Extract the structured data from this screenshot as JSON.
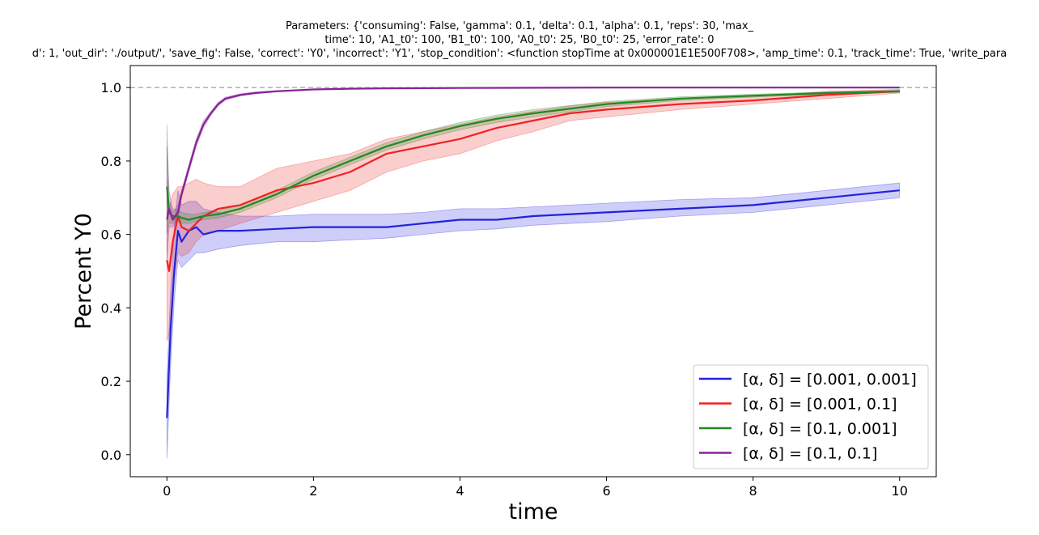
{
  "chart_data": {
    "type": "line",
    "title_lines": [
      "Parameters: {'consuming': False, 'gamma': 0.1, 'delta': 0.1, 'alpha': 0.1, 'reps': 30, 'max_",
      "time': 10, 'A1_t0': 100, 'B1_t0': 100, 'A0_t0': 25, 'B0_t0': 25, 'error_rate': 0",
      "d': 1, 'out_dir': './output/', 'save_fig': False, 'correct': 'Y0', 'incorrect': 'Y1', 'stop_condition': <function stopTime at 0x000001E1E500F708>, 'amp_time': 0.1, 'track_time': True, 'write_para"
    ],
    "xlabel": "time",
    "ylabel": "Percent Y0",
    "xlim": [
      -0.5,
      10.5
    ],
    "ylim": [
      -0.06,
      1.06
    ],
    "x_ticks": [
      "0",
      "2",
      "4",
      "6",
      "8",
      "10"
    ],
    "y_ticks": [
      "0.0",
      "0.2",
      "0.4",
      "0.6",
      "0.8",
      "1.0"
    ],
    "reference_line": {
      "y": 1.0,
      "style": "dashed",
      "color": "#b0b0b0"
    },
    "legend_position": "lower-right",
    "grid": false,
    "series": [
      {
        "name": "[α, δ] = [0.001, 0.001]",
        "color": "#2222dd",
        "x": [
          0,
          0.05,
          0.1,
          0.15,
          0.2,
          0.3,
          0.4,
          0.5,
          0.7,
          1.0,
          1.5,
          2.0,
          2.5,
          3.0,
          3.5,
          4.0,
          4.5,
          5.0,
          6.0,
          7.0,
          8.0,
          9.0,
          10.0
        ],
        "y": [
          0.1,
          0.34,
          0.5,
          0.61,
          0.58,
          0.61,
          0.62,
          0.6,
          0.61,
          0.61,
          0.615,
          0.62,
          0.62,
          0.62,
          0.63,
          0.64,
          0.64,
          0.65,
          0.66,
          0.67,
          0.68,
          0.7,
          0.72
        ],
        "lower": [
          -0.01,
          0.24,
          0.42,
          0.53,
          0.51,
          0.53,
          0.55,
          0.55,
          0.56,
          0.57,
          0.58,
          0.58,
          0.585,
          0.59,
          0.6,
          0.61,
          0.615,
          0.625,
          0.635,
          0.65,
          0.66,
          0.68,
          0.7
        ],
        "upper": [
          0.21,
          0.44,
          0.62,
          0.72,
          0.68,
          0.69,
          0.69,
          0.67,
          0.66,
          0.65,
          0.65,
          0.655,
          0.655,
          0.655,
          0.66,
          0.67,
          0.67,
          0.675,
          0.685,
          0.695,
          0.7,
          0.72,
          0.74
        ]
      },
      {
        "name": "[α, δ] = [0.001, 0.1]",
        "color": "#ee2222",
        "x": [
          0,
          0.03,
          0.08,
          0.15,
          0.2,
          0.3,
          0.4,
          0.5,
          0.7,
          1.0,
          1.5,
          2.0,
          2.5,
          3.0,
          3.5,
          4.0,
          4.5,
          5.0,
          5.5,
          6.0,
          7.0,
          8.0,
          9.0,
          10.0
        ],
        "y": [
          0.53,
          0.5,
          0.58,
          0.65,
          0.62,
          0.61,
          0.63,
          0.65,
          0.67,
          0.68,
          0.72,
          0.74,
          0.77,
          0.82,
          0.84,
          0.86,
          0.89,
          0.91,
          0.93,
          0.94,
          0.955,
          0.965,
          0.98,
          0.99
        ],
        "lower": [
          0.31,
          0.33,
          0.45,
          0.55,
          0.54,
          0.55,
          0.58,
          0.6,
          0.61,
          0.63,
          0.66,
          0.69,
          0.72,
          0.77,
          0.8,
          0.82,
          0.855,
          0.88,
          0.91,
          0.92,
          0.94,
          0.955,
          0.97,
          0.985
        ],
        "upper": [
          0.75,
          0.67,
          0.71,
          0.73,
          0.73,
          0.74,
          0.75,
          0.74,
          0.73,
          0.73,
          0.78,
          0.8,
          0.82,
          0.86,
          0.88,
          0.9,
          0.92,
          0.935,
          0.95,
          0.96,
          0.97,
          0.975,
          0.99,
          0.995
        ]
      },
      {
        "name": "[α, δ] = [0.1, 0.001]",
        "color": "#228822",
        "x": [
          0,
          0.03,
          0.08,
          0.15,
          0.2,
          0.3,
          0.4,
          0.5,
          0.7,
          1.0,
          1.5,
          2.0,
          2.5,
          3.0,
          3.5,
          4.0,
          4.5,
          5.0,
          6.0,
          7.0,
          8.0,
          9.0,
          10.0
        ],
        "y": [
          0.73,
          0.66,
          0.65,
          0.65,
          0.645,
          0.64,
          0.645,
          0.65,
          0.655,
          0.67,
          0.71,
          0.76,
          0.8,
          0.84,
          0.87,
          0.895,
          0.915,
          0.93,
          0.955,
          0.97,
          0.978,
          0.985,
          0.99
        ],
        "lower": [
          0.6,
          0.63,
          0.63,
          0.635,
          0.63,
          0.63,
          0.635,
          0.64,
          0.645,
          0.66,
          0.7,
          0.75,
          0.79,
          0.83,
          0.86,
          0.885,
          0.905,
          0.92,
          0.948,
          0.965,
          0.974,
          0.982,
          0.987
        ],
        "upper": [
          0.9,
          0.69,
          0.67,
          0.665,
          0.66,
          0.655,
          0.655,
          0.66,
          0.665,
          0.68,
          0.72,
          0.77,
          0.81,
          0.85,
          0.88,
          0.905,
          0.925,
          0.94,
          0.962,
          0.975,
          0.982,
          0.988,
          0.993
        ]
      },
      {
        "name": "[α, δ] = [0.1, 0.1]",
        "color": "#882299",
        "x": [
          0,
          0.03,
          0.08,
          0.15,
          0.2,
          0.3,
          0.4,
          0.5,
          0.6,
          0.7,
          0.8,
          1.0,
          1.2,
          1.5,
          2.0,
          2.5,
          3.0,
          4.0,
          6.0,
          8.0,
          10.0
        ],
        "y": [
          0.64,
          0.67,
          0.64,
          0.66,
          0.71,
          0.78,
          0.85,
          0.9,
          0.93,
          0.955,
          0.97,
          0.98,
          0.985,
          0.99,
          0.995,
          0.997,
          0.998,
          0.999,
          1.0,
          1.0,
          1.0
        ],
        "lower": [
          0.53,
          0.62,
          0.62,
          0.64,
          0.7,
          0.77,
          0.84,
          0.89,
          0.925,
          0.95,
          0.966,
          0.977,
          0.983,
          0.989,
          0.994,
          0.996,
          0.997,
          0.998,
          0.999,
          1.0,
          1.0
        ],
        "upper": [
          0.84,
          0.72,
          0.66,
          0.68,
          0.72,
          0.79,
          0.86,
          0.91,
          0.935,
          0.96,
          0.974,
          0.983,
          0.988,
          0.992,
          0.996,
          0.998,
          0.999,
          1.0,
          1.0,
          1.0,
          1.0
        ]
      }
    ]
  }
}
